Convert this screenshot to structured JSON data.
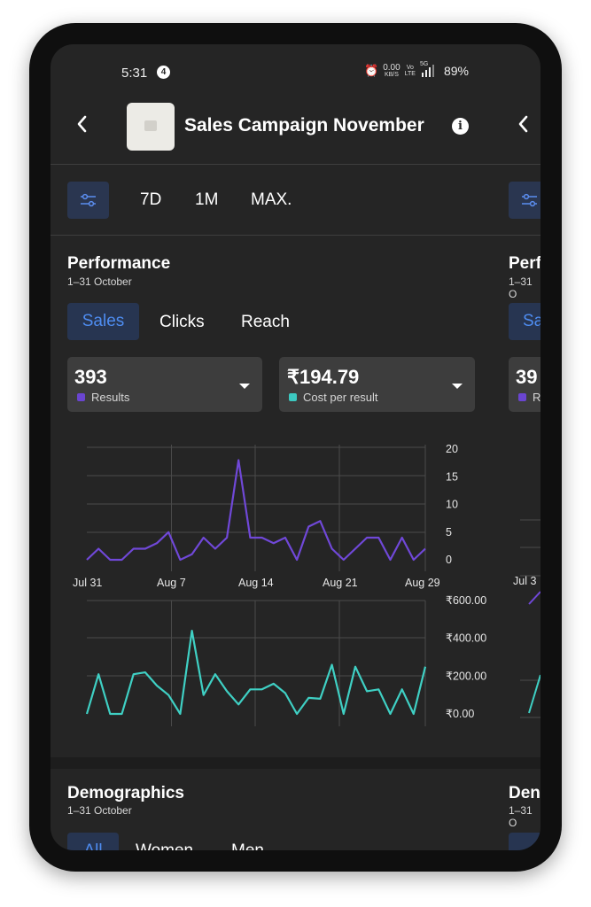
{
  "status": {
    "time": "5:31",
    "notif_count": "4",
    "net_speed_value": "0.00",
    "net_speed_unit": "KB/S",
    "vo_top": "Vo",
    "vo_bottom": "LTE",
    "signal_label": "5G",
    "battery": "89%"
  },
  "header": {
    "title": "Sales Campaign November"
  },
  "periods": [
    "7D",
    "1M",
    "MAX."
  ],
  "performance": {
    "title": "Performance",
    "subtitle": "1–31 October",
    "tabs": [
      "Sales",
      "Clicks",
      "Reach"
    ],
    "metric1": {
      "value": "393",
      "label": "Results",
      "color": "#6a45d0"
    },
    "metric2": {
      "value": "₹194.79",
      "label": "Cost per result",
      "color": "#3cc8c0"
    }
  },
  "next_panel": {
    "title_partial": "Perf",
    "subtitle_partial": "1–31 O",
    "tab_partial": "Sa",
    "value_partial": "39",
    "label_partial": "R",
    "x_label_partial": "Jul 3",
    "demo_title_partial": "Den",
    "demo_sub_partial": "1–31 O"
  },
  "chart_data": [
    {
      "type": "line",
      "series": [
        {
          "values": [
            0,
            2,
            0,
            0,
            2,
            2,
            3,
            5,
            0,
            1,
            4,
            2,
            4,
            18,
            4,
            4,
            3,
            4,
            0,
            6,
            7,
            2,
            0,
            2,
            4,
            4,
            0,
            4,
            0,
            2
          ],
          "color": "#7048d8"
        }
      ],
      "x_tick_labels": [
        "Jul 31",
        "Aug 7",
        "Aug 14",
        "Aug 21",
        "Aug 29"
      ],
      "y_tick_labels": [
        "20",
        "15",
        "10",
        "5",
        "0"
      ],
      "ylim": [
        0,
        20
      ],
      "grid": true
    },
    {
      "type": "line",
      "series": [
        {
          "values": [
            0,
            210,
            0,
            0,
            210,
            220,
            150,
            100,
            0,
            440,
            100,
            210,
            120,
            50,
            130,
            130,
            160,
            110,
            0,
            85,
            80,
            260,
            0,
            250,
            120,
            130,
            0,
            130,
            0,
            250
          ],
          "color": "#3fd0c4"
        }
      ],
      "y_tick_labels": [
        "₹600.00",
        "₹400.00",
        "₹200.00",
        "₹0.00"
      ],
      "ylim": [
        0,
        600
      ],
      "grid": true
    }
  ],
  "demographics": {
    "title": "Demographics",
    "subtitle": "1–31 October",
    "tabs": [
      "All",
      "Women",
      "Men"
    ]
  }
}
